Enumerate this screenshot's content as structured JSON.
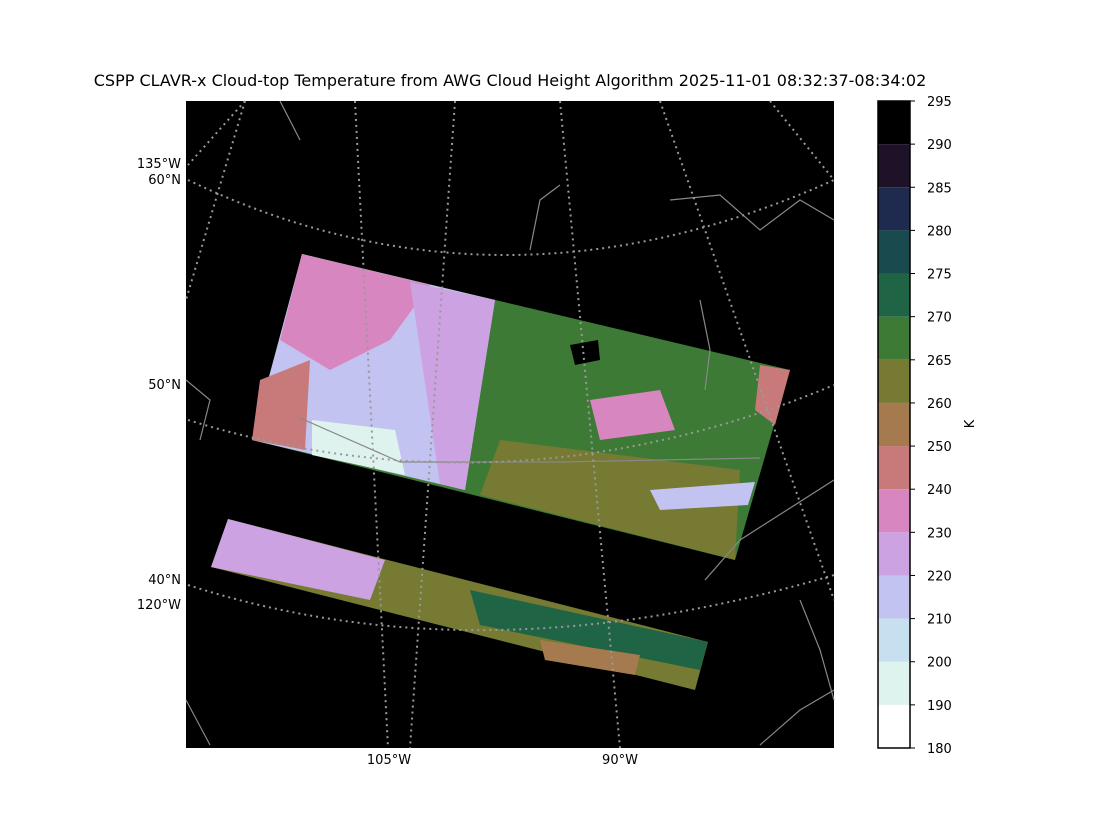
{
  "title": "CSPP CLAVR-x Cloud-top Temperature from AWG Cloud Height Algorithm 2025-11-01 08:32:37-08:34:02",
  "map": {
    "left_labels": [
      {
        "lon": "135°W",
        "lat": "60°N"
      },
      {
        "lat": "50°N"
      },
      {
        "lat": "40°N",
        "lon": "120°W"
      }
    ],
    "bottom_labels": [
      "105°W",
      "90°W"
    ]
  },
  "colorbar": {
    "label": "K",
    "ticks": [
      180,
      190,
      200,
      210,
      220,
      230,
      240,
      250,
      260,
      265,
      270,
      275,
      280,
      285,
      290,
      295
    ],
    "colors": [
      "#ffffff",
      "#dff3ee",
      "#c6e0f0",
      "#c3c3f2",
      "#cca2e2",
      "#d886c0",
      "#c87a7a",
      "#a47a4e",
      "#767a32",
      "#3d7a35",
      "#1e6445",
      "#184a4e",
      "#1e2a4e",
      "#1e1228",
      "#000000"
    ]
  }
}
